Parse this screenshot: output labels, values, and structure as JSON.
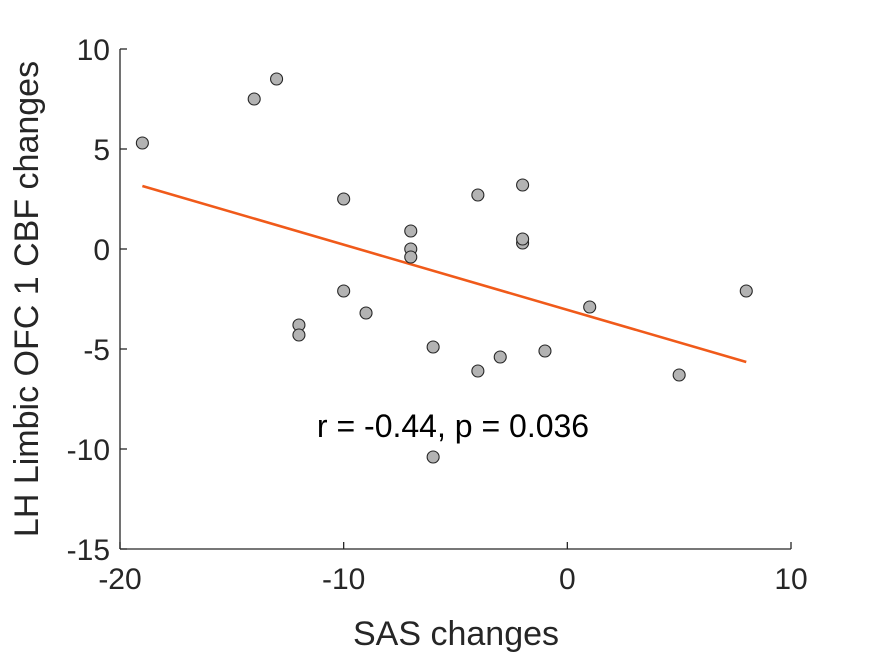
{
  "chart_data": {
    "type": "scatter",
    "title": "",
    "xlabel": "SAS changes",
    "ylabel": "LH Limbic OFC 1 CBF changes",
    "xlim": [
      -20,
      10
    ],
    "ylim": [
      -15,
      10
    ],
    "x_ticks": [
      -20,
      -10,
      0,
      10
    ],
    "y_ticks": [
      10,
      5,
      0,
      -5,
      -10,
      -15
    ],
    "x_tick_labels": [
      "-20",
      "-10",
      "0",
      "10"
    ],
    "y_tick_labels": [
      "10",
      "5",
      "0",
      "-5",
      "-10",
      "-15"
    ],
    "grid": false,
    "points": [
      {
        "x": -19,
        "y": 5.3
      },
      {
        "x": -14,
        "y": 7.5
      },
      {
        "x": -13,
        "y": 8.5
      },
      {
        "x": -12,
        "y": -3.8
      },
      {
        "x": -12,
        "y": -4.3
      },
      {
        "x": -10,
        "y": 2.5
      },
      {
        "x": -10,
        "y": -2.1
      },
      {
        "x": -9,
        "y": -3.2
      },
      {
        "x": -7,
        "y": 0.9
      },
      {
        "x": -7,
        "y": 0.0
      },
      {
        "x": -7,
        "y": -0.4
      },
      {
        "x": -6,
        "y": -4.9
      },
      {
        "x": -6,
        "y": -10.4
      },
      {
        "x": -4,
        "y": 2.7
      },
      {
        "x": -4,
        "y": -6.1
      },
      {
        "x": -3,
        "y": -5.4
      },
      {
        "x": -2,
        "y": 3.2
      },
      {
        "x": -2,
        "y": 0.3
      },
      {
        "x": -2,
        "y": 0.5
      },
      {
        "x": -1,
        "y": -5.1
      },
      {
        "x": 1,
        "y": -2.9
      },
      {
        "x": 5,
        "y": -6.3
      },
      {
        "x": 8,
        "y": -2.1
      }
    ],
    "fit_line": {
      "x": [
        -19,
        8
      ],
      "y": [
        3.15,
        -5.65
      ]
    },
    "annotation": "r = -0.44, p = 0.036",
    "colors": {
      "marker_fill": "#b3b3b3",
      "marker_edge": "#262626",
      "fit_line": "#f05a1a",
      "axis": "#262626"
    }
  }
}
